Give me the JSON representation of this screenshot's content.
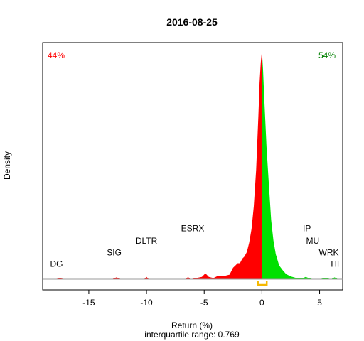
{
  "chart_data": {
    "type": "area",
    "title": "2016-08-25",
    "xlabel": "Return (%)",
    "subtitle": "interquartile range: 0.769",
    "ylabel": "Density",
    "xlim": [
      -19,
      7
    ],
    "xticks": [
      -15,
      -10,
      -5,
      0,
      5
    ],
    "ylim": [
      0,
      1
    ],
    "down_pct_label": "44%",
    "up_pct_label": "54%",
    "down_color": "#ff0000",
    "up_color": "#00e000",
    "iqr_bracket_color": "#f5b800",
    "iqr": [
      -0.35,
      0.42
    ],
    "density": {
      "x": [
        -18,
        -17.5,
        -17,
        -16,
        -13,
        -12.6,
        -12.2,
        -11,
        -10.2,
        -10,
        -9.8,
        -9,
        -6.6,
        -6.4,
        -6.2,
        -5.2,
        -4.9,
        -4.6,
        -4.2,
        -3.8,
        -3.2,
        -2.8,
        -2.5,
        -2.3,
        -2.1,
        -1.9,
        -1.7,
        -1.5,
        -1.3,
        -1.1,
        -0.9,
        -0.7,
        -0.5,
        -0.3,
        -0.2,
        -0.1,
        0,
        0.1,
        0.2,
        0.4,
        0.6,
        0.8,
        1.0,
        1.2,
        1.5,
        1.8,
        2.1,
        2.5,
        3.0,
        3.5,
        3.8,
        4.1,
        4.5,
        5.0,
        5.5,
        6.0,
        6.3,
        6.6,
        7
      ],
      "y": [
        0.0,
        0.004,
        0.0,
        0.0,
        0.0,
        0.008,
        0.0,
        0.0,
        0.0,
        0.01,
        0.0,
        0.0,
        0.0,
        0.01,
        0.0,
        0.01,
        0.026,
        0.01,
        0.005,
        0.015,
        0.015,
        0.02,
        0.05,
        0.06,
        0.07,
        0.07,
        0.09,
        0.1,
        0.12,
        0.16,
        0.22,
        0.32,
        0.48,
        0.72,
        0.86,
        0.95,
        1.0,
        0.92,
        0.8,
        0.58,
        0.42,
        0.26,
        0.17,
        0.11,
        0.06,
        0.04,
        0.022,
        0.012,
        0.005,
        0.004,
        0.01,
        0.004,
        0.0,
        0.0,
        0.006,
        0.0,
        0.008,
        0.0,
        0.0
      ]
    },
    "annotations": [
      {
        "text": "DG",
        "x": -17.8,
        "y": 0.055
      },
      {
        "text": "SIG",
        "x": -12.8,
        "y": 0.105
      },
      {
        "text": "DLTR",
        "x": -10.0,
        "y": 0.155
      },
      {
        "text": "ESRX",
        "x": -6.0,
        "y": 0.21
      },
      {
        "text": "IP",
        "x": 3.9,
        "y": 0.21
      },
      {
        "text": "MU",
        "x": 4.4,
        "y": 0.155
      },
      {
        "text": "WRK",
        "x": 5.8,
        "y": 0.105
      },
      {
        "text": "TIF",
        "x": 6.4,
        "y": 0.055
      }
    ]
  }
}
